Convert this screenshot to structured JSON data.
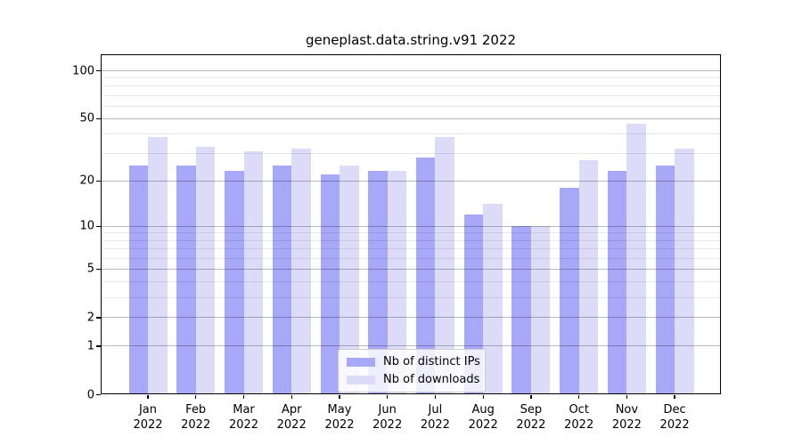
{
  "chart_data": {
    "type": "bar",
    "title": "geneplast.data.string.v91 2022",
    "categories": [
      "Jan",
      "Feb",
      "Mar",
      "Apr",
      "May",
      "Jun",
      "Jul",
      "Aug",
      "Sep",
      "Oct",
      "Nov",
      "Dec"
    ],
    "year": "2022",
    "series": [
      {
        "name": "Nb of distinct IPs",
        "color": "#a8a8f8",
        "values": [
          25,
          25,
          23,
          25,
          22,
          23,
          28,
          12,
          10,
          18,
          23,
          25
        ]
      },
      {
        "name": "Nb of downloads",
        "color": "#dcdcf8",
        "values": [
          38,
          33,
          31,
          32,
          25,
          23,
          38,
          14,
          10,
          27,
          46,
          32
        ]
      }
    ],
    "xlabel": "",
    "ylabel": "",
    "y_scale": "log1p",
    "y_major_ticks": [
      0,
      1,
      2,
      5,
      10,
      20,
      50,
      100
    ],
    "y_minor_ticks": [
      3,
      4,
      6,
      7,
      8,
      9,
      30,
      40,
      60,
      70,
      80,
      90
    ],
    "ylim": [
      0,
      126
    ],
    "grid": true,
    "legend_position": "lower-center",
    "colors": {
      "major_grid": "#bdbdbd",
      "minor_grid": "#e9e9e9",
      "axis": "#000000",
      "background": "#ffffff"
    }
  }
}
